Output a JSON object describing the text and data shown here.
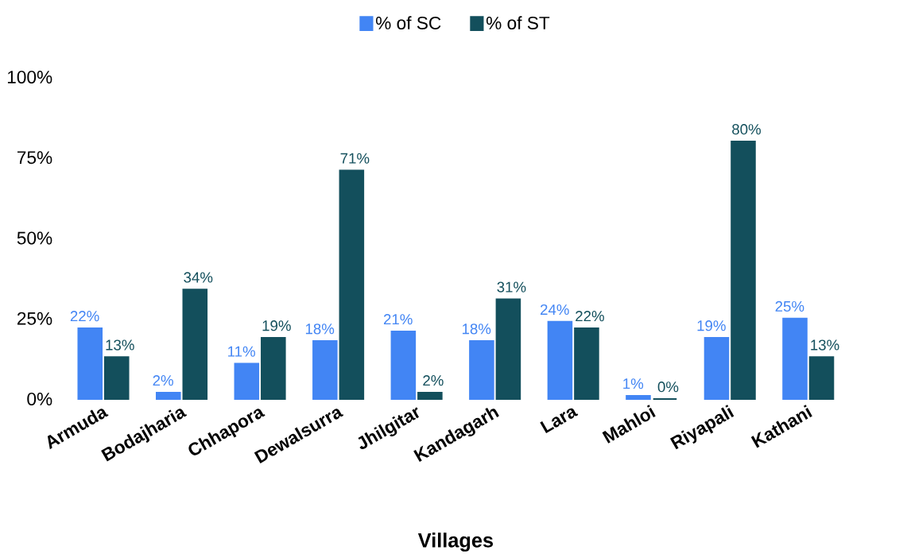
{
  "chart_data": {
    "type": "bar",
    "xlabel": "Villages",
    "categories": [
      "Armuda",
      "Bodajharia",
      "Chhapora",
      "Dewalsurra",
      "Jhilgitar",
      "Kandagarh",
      "Lara",
      "Mahloi",
      "Riyapali",
      "Kathani"
    ],
    "series": [
      {
        "name": "% of SC",
        "color": "#4285f4",
        "values": [
          22,
          2,
          11,
          18,
          21,
          18,
          24,
          1,
          19,
          25
        ],
        "value_labels": [
          "22%",
          "2%",
          "11%",
          "18%",
          "21%",
          "18%",
          "24%",
          "1%",
          "19%",
          "25%"
        ]
      },
      {
        "name": "% of ST",
        "color": "#134f5c",
        "values": [
          13,
          34,
          19,
          71,
          2,
          31,
          22,
          0,
          80,
          13
        ],
        "value_labels": [
          "13%",
          "34%",
          "19%",
          "71%",
          "2%",
          "31%",
          "22%",
          "0%",
          "80%",
          "13%"
        ]
      }
    ],
    "ylim": [
      0,
      100
    ],
    "yticks": [
      {
        "value": 0,
        "label": "0%"
      },
      {
        "value": 25,
        "label": "25%"
      },
      {
        "value": 50,
        "label": "50%"
      },
      {
        "value": 75,
        "label": "75%"
      },
      {
        "value": 100,
        "label": "100%"
      }
    ],
    "legend": "top"
  }
}
